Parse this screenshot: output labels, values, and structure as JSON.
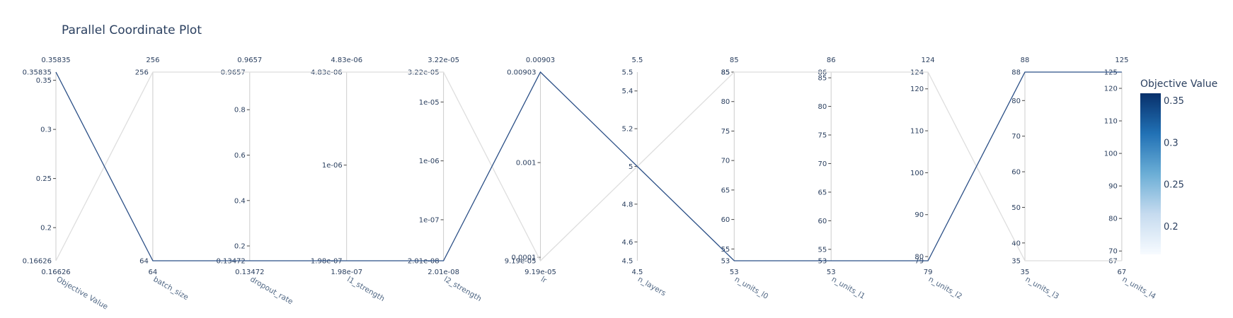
{
  "chart_data": {
    "type": "parallel_coordinates",
    "title": "Parallel Coordinate Plot",
    "axes": [
      {
        "label": "Objective Value",
        "range": [
          0.16626,
          0.35835
        ],
        "range_labels": [
          "0.16626",
          "0.35835"
        ],
        "ticks": [
          0.2,
          0.25,
          0.3,
          0.35
        ],
        "tick_labels": [
          "0.2",
          "0.25",
          "0.3",
          "0.35"
        ],
        "scale": "linear"
      },
      {
        "label": "batch_size",
        "range": [
          64,
          256
        ],
        "range_labels": [
          "64",
          "256"
        ],
        "ticks": [],
        "tick_labels": [],
        "scale": "linear"
      },
      {
        "label": "dropout_rate",
        "range": [
          0.13472,
          0.9657
        ],
        "range_labels": [
          "0.13472",
          "0.9657"
        ],
        "ticks": [
          0.2,
          0.4,
          0.6,
          0.8
        ],
        "tick_labels": [
          "0.2",
          "0.4",
          "0.6",
          "0.8"
        ],
        "scale": "linear"
      },
      {
        "label": "l1_strength",
        "range": [
          1.98e-07,
          4.83e-06
        ],
        "range_labels": [
          "1.98e-07",
          "4.83e-06"
        ],
        "ticks": [
          1e-06
        ],
        "tick_labels": [
          "1e-06"
        ],
        "scale": "log"
      },
      {
        "label": "l2_strength",
        "range": [
          2.01e-08,
          3.22e-05
        ],
        "range_labels": [
          "2.01e-08",
          "3.22e-05"
        ],
        "ticks": [
          1e-07,
          1e-06,
          1e-05
        ],
        "tick_labels": [
          "1e-07",
          "1e-06",
          "1e-05"
        ],
        "scale": "log"
      },
      {
        "label": "lr",
        "range": [
          9.19e-05,
          0.00903
        ],
        "range_labels": [
          "9.19e-05",
          "0.00903"
        ],
        "ticks": [
          0.0001,
          0.001
        ],
        "tick_labels": [
          "0.0001",
          "0.001"
        ],
        "scale": "log"
      },
      {
        "label": "n_layers",
        "range": [
          4.5,
          5.5
        ],
        "range_labels": [
          "4.5",
          "5.5"
        ],
        "ticks": [
          4.6,
          4.8,
          5,
          5.2,
          5.4
        ],
        "tick_labels": [
          "4.6",
          "4.8",
          "5",
          "5.2",
          "5.4"
        ],
        "scale": "linear"
      },
      {
        "label": "n_units_l0",
        "range": [
          53,
          85
        ],
        "range_labels": [
          "53",
          "85"
        ],
        "ticks": [
          55,
          60,
          65,
          70,
          75,
          80,
          85
        ],
        "tick_labels": [
          "55",
          "60",
          "65",
          "70",
          "75",
          "80",
          "85"
        ],
        "scale": "linear"
      },
      {
        "label": "n_units_l1",
        "range": [
          53,
          86
        ],
        "range_labels": [
          "53",
          "86"
        ],
        "ticks": [
          55,
          60,
          65,
          70,
          75,
          80,
          85
        ],
        "tick_labels": [
          "55",
          "60",
          "65",
          "70",
          "75",
          "80",
          "85"
        ],
        "scale": "linear"
      },
      {
        "label": "n_units_l2",
        "range": [
          79,
          124
        ],
        "range_labels": [
          "79",
          "124"
        ],
        "ticks": [
          80,
          90,
          100,
          110,
          120
        ],
        "tick_labels": [
          "80",
          "90",
          "100",
          "110",
          "120"
        ],
        "scale": "linear"
      },
      {
        "label": "n_units_l3",
        "range": [
          35,
          88
        ],
        "range_labels": [
          "35",
          "88"
        ],
        "ticks": [
          40,
          50,
          60,
          70,
          80
        ],
        "tick_labels": [
          "40",
          "50",
          "60",
          "70",
          "80"
        ],
        "scale": "linear"
      },
      {
        "label": "n_units_l4",
        "range": [
          67,
          125
        ],
        "range_labels": [
          "67",
          "125"
        ],
        "ticks": [
          70,
          80,
          90,
          100,
          110,
          120
        ],
        "tick_labels": [
          "70",
          "80",
          "90",
          "100",
          "110",
          "120"
        ],
        "scale": "linear"
      }
    ],
    "trials": [
      {
        "values": [
          0.35835,
          64,
          0.13472,
          1.98e-07,
          2.01e-08,
          0.00903,
          5,
          53,
          53,
          79,
          88,
          125
        ],
        "color": "#2b4f86"
      },
      {
        "values": [
          0.16626,
          256,
          0.9657,
          4.83e-06,
          3.22e-05,
          9.19e-05,
          5,
          85,
          86,
          124,
          35,
          67
        ],
        "color": "#dedede"
      }
    ],
    "colorbar": {
      "title": "Objective Value",
      "ticks": [
        0.2,
        0.25,
        0.3,
        0.35
      ],
      "tick_labels": [
        "0.2",
        "0.25",
        "0.3",
        "0.35"
      ],
      "range": [
        0.16626,
        0.35835
      ],
      "colors": [
        "#f7fbff",
        "#c6dbef",
        "#6baed6",
        "#2171b5",
        "#08306b"
      ]
    }
  }
}
